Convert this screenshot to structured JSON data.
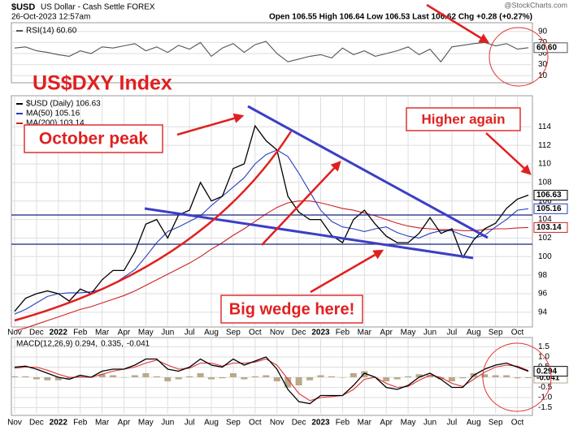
{
  "header": {
    "symbol": "$USD",
    "name": "US Dollar - Cash Settle FOREX",
    "date": "26-Oct-2023 12:57am",
    "quote": "Open 106.55 High 106.64 Low 106.53 Last 106.62 Chg +0.28 (+0.27%)",
    "source": "@StockCharts.com"
  },
  "annotations": [
    "US$DXY Index",
    "October peak",
    "Higher again",
    "Big wedge here!"
  ],
  "chart_data": [
    {
      "type": "line",
      "ylim": [
        0,
        100
      ],
      "yticks": [
        10,
        30,
        50,
        70,
        90
      ],
      "grid": true,
      "series": [
        {
          "name": "RSI(14) 60.60",
          "color": "#555555",
          "label": "60.60",
          "values": [
            60,
            62,
            55,
            52,
            48,
            45,
            55,
            50,
            62,
            60,
            64,
            68,
            55,
            62,
            52,
            65,
            58,
            70,
            45,
            60,
            68,
            52,
            66,
            72,
            50,
            35,
            40,
            45,
            48,
            42,
            60,
            48,
            55,
            45,
            50,
            55,
            62,
            48,
            58,
            35,
            62,
            65,
            68,
            70,
            64,
            68,
            58,
            60.6
          ]
        }
      ]
    },
    {
      "type": "line",
      "ylim": [
        92.5,
        117
      ],
      "yticks": [
        94,
        96,
        98,
        100,
        102,
        104,
        106,
        108,
        110,
        112,
        114
      ],
      "grid": true,
      "categories": [
        "Nov",
        null,
        "Dec",
        null,
        "2022",
        null,
        "Feb",
        null,
        "Mar",
        null,
        "Apr",
        null,
        "May",
        null,
        "Jun",
        null,
        "Jul",
        null,
        "Aug",
        null,
        "Sep",
        null,
        "Oct",
        null,
        "Nov",
        null,
        "Dec",
        null,
        "2023",
        null,
        "Feb",
        null,
        "Mar",
        null,
        "Apr",
        null,
        "May",
        null,
        "Jun",
        null,
        "Jul",
        null,
        "Aug",
        null,
        "Sep",
        null,
        "Oct",
        null
      ],
      "series": [
        {
          "name": "MA(200) 103.14",
          "color": "#cc2222",
          "label": "103.14",
          "values": [
            92.0,
            92.3,
            92.7,
            93.1,
            93.5,
            93.9,
            94.3,
            94.6,
            95.0,
            95.4,
            95.8,
            96.3,
            96.9,
            97.5,
            98.1,
            98.7,
            99.3,
            100.0,
            100.8,
            101.5,
            102.3,
            103.0,
            103.8,
            104.6,
            105.3,
            105.8,
            106.0,
            106.0,
            105.8,
            105.5,
            105.2,
            105.0,
            104.7,
            104.4,
            104.0,
            103.6,
            103.3,
            103.1,
            103.0,
            102.9,
            102.9,
            102.8,
            102.8,
            102.9,
            103.0,
            103.0,
            103.1,
            103.14
          ]
        },
        {
          "name": "MA(50) 105.16",
          "color": "#2a3fbf",
          "label": "105.16",
          "values": [
            93.8,
            94.3,
            95.0,
            95.7,
            96.0,
            96.1,
            96.1,
            96.2,
            96.5,
            97.0,
            97.8,
            98.6,
            100.0,
            101.5,
            102.7,
            103.2,
            103.8,
            104.4,
            105.5,
            106.5,
            107.5,
            108.5,
            110.0,
            111.0,
            111.5,
            110.8,
            109.0,
            107.0,
            105.0,
            103.8,
            103.2,
            103.0,
            102.7,
            103.0,
            103.2,
            102.6,
            102.2,
            102.0,
            102.5,
            102.8,
            102.8,
            102.3,
            102.0,
            102.3,
            103.2,
            104.0,
            105.0,
            105.16
          ]
        },
        {
          "name": "$USD (Daily) 106.63",
          "color": "#000000",
          "label": "106.63",
          "values": [
            94.1,
            95.5,
            96.0,
            96.3,
            96.0,
            95.2,
            96.5,
            96.0,
            97.5,
            98.5,
            98.5,
            100.5,
            103.5,
            104.0,
            102.0,
            104.5,
            105.0,
            108.0,
            106.0,
            106.5,
            109.5,
            110.0,
            114.1,
            112.5,
            111.5,
            106.5,
            104.8,
            104.0,
            104.0,
            102.3,
            101.5,
            104.0,
            105.0,
            103.5,
            102.2,
            101.5,
            101.5,
            102.5,
            104.2,
            102.5,
            103.0,
            99.9,
            101.8,
            103.0,
            103.6,
            105.2,
            106.2,
            106.63
          ]
        }
      ]
    },
    {
      "type": "line",
      "ylim": [
        -1.8,
        1.8
      ],
      "grid": true,
      "yticks": [
        1.5,
        {
          "value": 1,
          "label": "1.0"
        },
        0.5,
        {
          "value": 0,
          "label": "0.0"
        },
        -0.5,
        {
          "value": -1,
          "label": "-1.0"
        },
        -1.5
      ],
      "categories": [
        "Nov",
        null,
        "Dec",
        null,
        "2022",
        null,
        "Feb",
        null,
        "Mar",
        null,
        "Apr",
        null,
        "May",
        null,
        "Jun",
        null,
        "Jul",
        null,
        "Aug",
        null,
        "Sep",
        null,
        "Oct",
        null,
        "Nov",
        null,
        "Dec",
        null,
        "2023",
        null,
        "Feb",
        null,
        "Mar",
        null,
        "Apr",
        null,
        "May",
        null,
        "Jun",
        null,
        "Jul",
        null,
        "Aug",
        null,
        "Sep",
        null,
        "Oct",
        null
      ],
      "series": [
        {
          "name": "-0.041",
          "type": "bar",
          "color": "#b8a98a",
          "label": "-0.041",
          "values": [
            0.05,
            0.05,
            -0.1,
            -0.15,
            -0.15,
            -0.1,
            0.1,
            0,
            0.15,
            0.1,
            0,
            0.1,
            0.2,
            0.05,
            -0.2,
            -0.1,
            0.05,
            0.2,
            -0.1,
            -0.05,
            0.2,
            -0.1,
            0.05,
            0.1,
            -0.2,
            -0.5,
            -0.4,
            -0.15,
            0.1,
            0.05,
            0,
            0.2,
            0.3,
            0,
            -0.2,
            -0.1,
            0.05,
            0.15,
            0.1,
            -0.1,
            -0.2,
            -0.05,
            0.2,
            0.15,
            0.1,
            0.1,
            -0.05,
            -0.041
          ]
        },
        {
          "name": "0.335,",
          "color": "#dd3333",
          "values": [
            0.45,
            0.5,
            0.5,
            0.35,
            0.15,
            0.0,
            0.0,
            0.0,
            0.15,
            0.3,
            0.4,
            0.5,
            0.7,
            0.85,
            0.6,
            0.4,
            0.45,
            0.7,
            0.7,
            0.55,
            0.7,
            0.7,
            0.75,
            0.9,
            0.6,
            -0.1,
            -0.8,
            -1.15,
            -1.0,
            -0.95,
            -0.9,
            -0.6,
            -0.1,
            0.0,
            -0.3,
            -0.5,
            -0.45,
            -0.15,
            0.1,
            0.0,
            -0.3,
            -0.45,
            -0.1,
            0.25,
            0.5,
            0.6,
            0.55,
            0.335
          ]
        },
        {
          "name": "MACD(12,26,9) 0.294,",
          "color": "#000000",
          "label": "0.294",
          "values": [
            0.5,
            0.55,
            0.4,
            0.2,
            0.0,
            -0.1,
            0.1,
            0.0,
            0.3,
            0.4,
            0.4,
            0.6,
            0.9,
            0.9,
            0.4,
            0.3,
            0.5,
            0.9,
            0.6,
            0.5,
            0.9,
            0.6,
            0.8,
            1.0,
            0.4,
            -0.6,
            -1.2,
            -1.3,
            -0.9,
            -0.9,
            -0.9,
            -0.4,
            0.2,
            0.0,
            -0.5,
            -0.6,
            -0.4,
            0.0,
            0.2,
            -0.1,
            -0.5,
            -0.5,
            0.1,
            0.4,
            0.6,
            0.7,
            0.5,
            0.294
          ]
        }
      ]
    }
  ]
}
